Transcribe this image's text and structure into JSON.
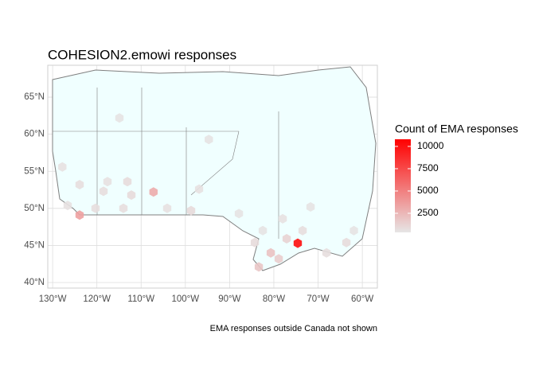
{
  "chart_data": {
    "type": "hexbin-map",
    "title": "COHESION2.emowi responses",
    "caption": "EMA responses outside Canada not shown",
    "legend_title": "Count of EMA responses",
    "xlim": [
      -131.1,
      -56.6
    ],
    "ylim": [
      39.25,
      69.3
    ],
    "xticks": [
      {
        "value": -130,
        "label": "130°W"
      },
      {
        "value": -120,
        "label": "120°W"
      },
      {
        "value": -110,
        "label": "110°W"
      },
      {
        "value": -100,
        "label": "100°W"
      },
      {
        "value": -90,
        "label": "90°W"
      },
      {
        "value": -80,
        "label": "80°W"
      },
      {
        "value": -70,
        "label": "70°W"
      },
      {
        "value": -60,
        "label": "60°W"
      }
    ],
    "yticks": [
      {
        "value": 40,
        "label": "40°N"
      },
      {
        "value": 45,
        "label": "45°N"
      },
      {
        "value": 50,
        "label": "50°N"
      },
      {
        "value": 55,
        "label": "55°N"
      },
      {
        "value": 60,
        "label": "60°N"
      },
      {
        "value": 65,
        "label": "65°N"
      }
    ],
    "grid": true,
    "color_scale": {
      "low": "#e6e6e6",
      "high": "#ff0000",
      "limits": [
        357,
        10800
      ],
      "ticks": [
        2500,
        5000,
        7500,
        10000
      ]
    },
    "hexbins": {
      "lon": [
        -127.8,
        -123.9,
        -117.6,
        -113.1,
        -112.2,
        -114.0,
        -120.3,
        -126.6,
        -98.7,
        -104.1,
        -94.7,
        -114.9,
        -87.9,
        -78.0,
        -71.7,
        -73.5,
        -84.3,
        -78.9,
        -80.7,
        -83.4,
        -68.1,
        -63.6,
        -61.9,
        -77.1,
        -82.5,
        -74.6,
        -123.9,
        -107.2,
        -118.5,
        -96.9
      ],
      "lat": [
        55.6,
        53.2,
        53.6,
        53.6,
        51.8,
        50.0,
        50.0,
        50.4,
        49.7,
        50.0,
        59.3,
        62.2,
        49.3,
        48.6,
        50.2,
        47.0,
        45.4,
        43.2,
        44.0,
        42.1,
        44.0,
        45.4,
        47.0,
        45.9,
        47.0,
        45.3,
        49.1,
        52.2,
        52.3,
        52.6
      ],
      "count": [
        600,
        700,
        600,
        800,
        900,
        700,
        700,
        600,
        900,
        600,
        500,
        500,
        500,
        600,
        500,
        700,
        800,
        1500,
        2000,
        1800,
        700,
        800,
        500,
        1200,
        500,
        10200,
        3500,
        3000,
        700,
        600
      ]
    }
  }
}
